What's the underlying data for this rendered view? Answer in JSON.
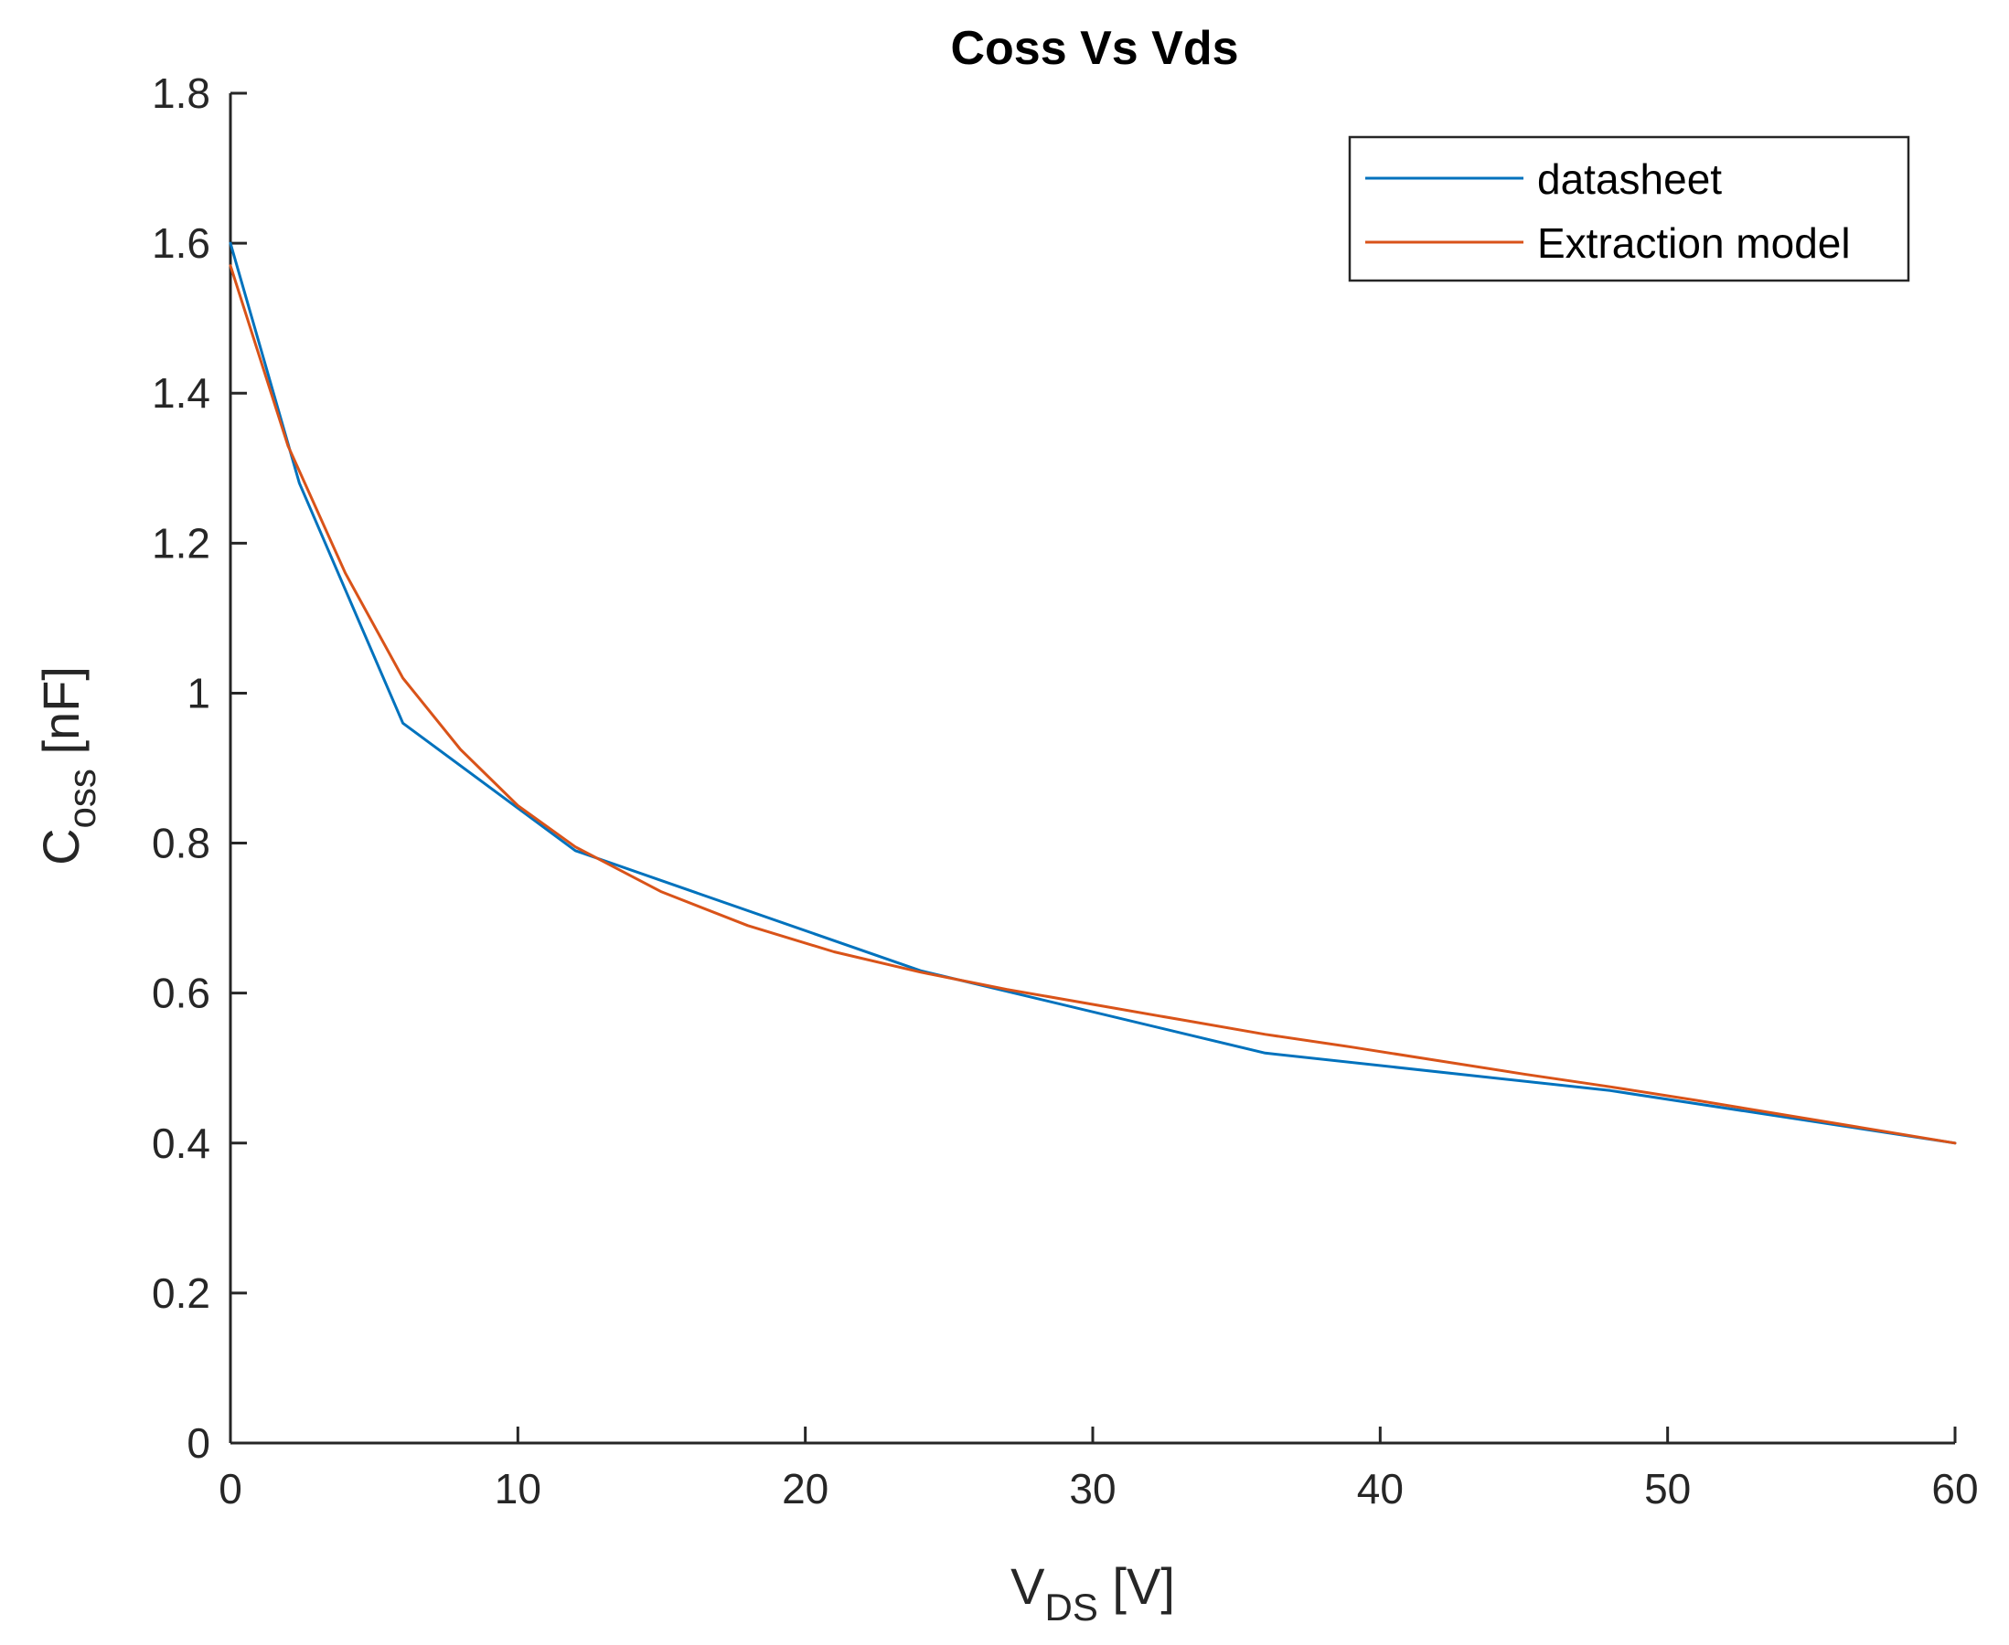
{
  "chart_data": {
    "type": "line",
    "title": "Coss Vs Vds",
    "xlabel": {
      "main": "V",
      "sub": "DS",
      "unit": " [V]"
    },
    "ylabel": {
      "main": "C",
      "sub": "oss",
      "unit": " [nF]"
    },
    "xlim": [
      0,
      60
    ],
    "ylim": [
      0,
      1.8
    ],
    "xticks": [
      0,
      10,
      20,
      30,
      40,
      50,
      60
    ],
    "yticks": [
      0,
      0.2,
      0.4,
      0.6,
      0.8,
      1,
      1.2,
      1.4,
      1.6,
      1.8
    ],
    "xtick_labels": [
      "0",
      "10",
      "20",
      "30",
      "40",
      "50",
      "60"
    ],
    "ytick_labels": [
      "0",
      "0.2",
      "0.4",
      "0.6",
      "0.8",
      "1",
      "1.2",
      "1.4",
      "1.6",
      "1.8"
    ],
    "grid": false,
    "legend_position": "top-right",
    "series": [
      {
        "name": "datasheet",
        "color": "#0072bd",
        "x": [
          0,
          2.4,
          6,
          12,
          24,
          36,
          48,
          60
        ],
        "y": [
          1.6,
          1.28,
          0.96,
          0.79,
          0.63,
          0.52,
          0.47,
          0.4
        ]
      },
      {
        "name": "Extraction model",
        "color": "#d95319",
        "x": [
          0,
          2,
          4,
          6,
          8,
          10,
          12,
          15,
          18,
          21,
          24,
          27,
          30,
          33,
          36,
          39,
          42,
          45,
          48,
          51,
          54,
          57,
          60
        ],
        "y": [
          1.57,
          1.33,
          1.16,
          1.02,
          0.925,
          0.85,
          0.795,
          0.735,
          0.69,
          0.655,
          0.628,
          0.605,
          0.585,
          0.565,
          0.545,
          0.528,
          0.51,
          0.492,
          0.475,
          0.457,
          0.438,
          0.419,
          0.4
        ]
      }
    ]
  }
}
